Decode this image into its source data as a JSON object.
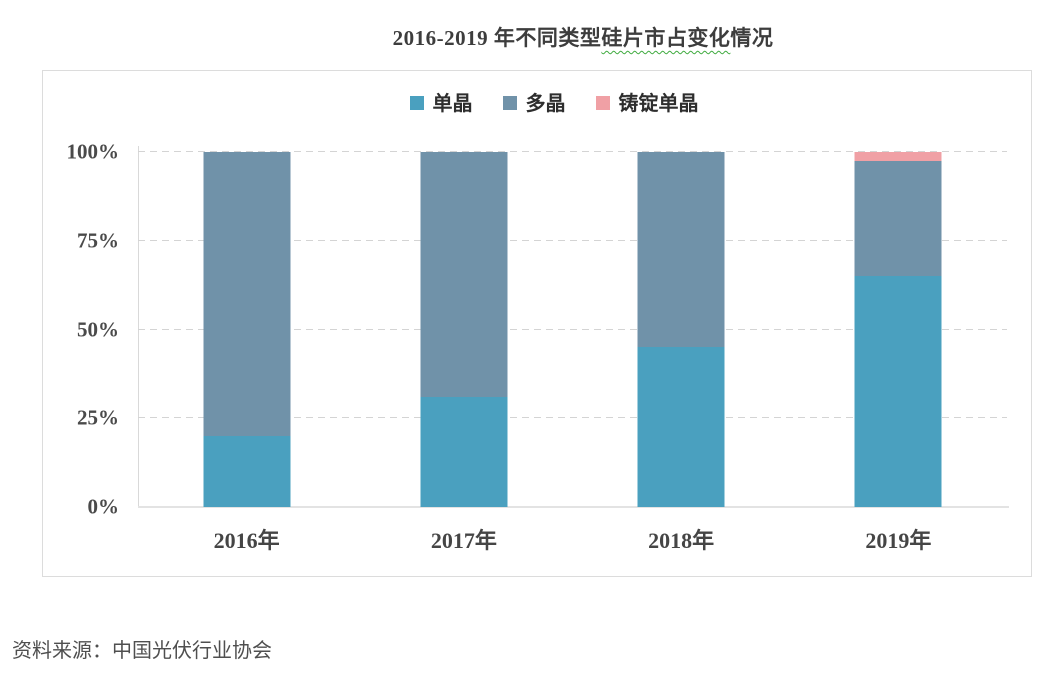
{
  "title": {
    "full": "2016-2019 年不同类型硅片市占变化情况",
    "prefix": "2016-2019 年不同类型",
    "underlined": "硅片市占变化",
    "suffix": "情况"
  },
  "chart_data": {
    "type": "bar",
    "stacked": true,
    "title": "2016-2019 年不同类型硅片市占变化情况",
    "categories": [
      "2016年",
      "2017年",
      "2018年",
      "2019年"
    ],
    "series": [
      {
        "key": "mono",
        "name": "单晶",
        "color": "#4AA0BF",
        "values": [
          20,
          31,
          45,
          65
        ]
      },
      {
        "key": "poly",
        "name": "多晶",
        "color": "#7092A9",
        "values": [
          80,
          69,
          55,
          32.5
        ]
      },
      {
        "key": "cast-mono",
        "name": "铸锭单晶",
        "color": "#F0A0A5",
        "values": [
          0,
          0,
          0,
          2.5
        ]
      }
    ],
    "y_ticks": [
      {
        "value": 0,
        "label": "0%"
      },
      {
        "value": 25,
        "label": "25%"
      },
      {
        "value": 50,
        "label": "50%"
      },
      {
        "value": 75,
        "label": "75%"
      },
      {
        "value": 100,
        "label": "100%"
      }
    ],
    "ylim": [
      0,
      100
    ],
    "unit": "%",
    "legend_position": "top-center",
    "grid": "horizontal-dashed"
  },
  "source": "资料来源：中国光伏行业协会",
  "colors": {
    "mono": "#4AA0BF",
    "poly": "#7092A9",
    "cast_mono": "#F0A0A5",
    "gridline": "#D4D4D4",
    "box_border": "#DCDCDC",
    "title_text": "#3D3D3D",
    "axis_text": "#4A4A4A",
    "source_text": "#4F4F4F",
    "title_squiggle": "#3FAA3F"
  }
}
